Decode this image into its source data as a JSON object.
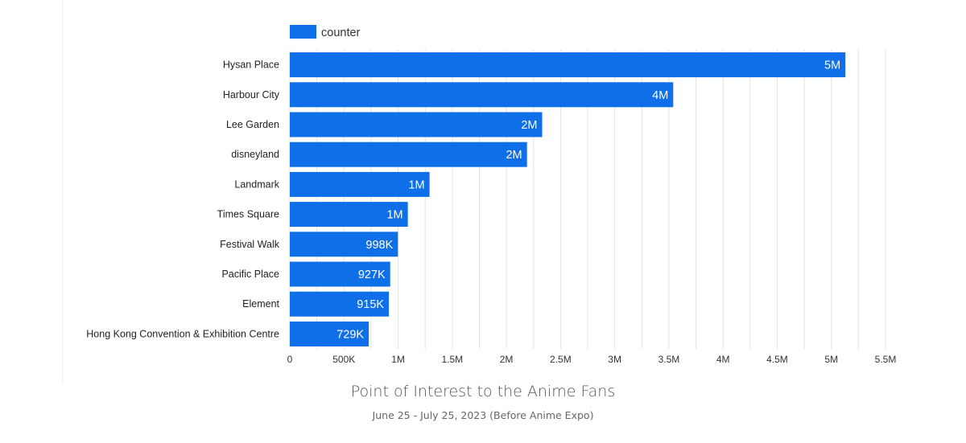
{
  "chart_data": {
    "type": "bar",
    "orientation": "horizontal",
    "categories": [
      "Hysan Place",
      "Harbour City",
      "Lee Garden",
      "disneyland",
      "Landmark",
      "Times Square",
      "Festival Walk",
      "Pacific Place",
      "Element",
      "Hong Kong Convention & Exhibition Centre"
    ],
    "series": [
      {
        "name": "counter",
        "values": [
          5130000,
          3540000,
          2330000,
          2190000,
          1290000,
          1090000,
          998000,
          927000,
          915000,
          729000
        ],
        "data_labels": [
          "5M",
          "4M",
          "2M",
          "2M",
          "1M",
          "1M",
          "998K",
          "927K",
          "915K",
          "729K"
        ]
      }
    ],
    "xlim": [
      0,
      5500000
    ],
    "x_ticks": [
      0,
      500000,
      1000000,
      1500000,
      2000000,
      2500000,
      3000000,
      3500000,
      4000000,
      4500000,
      5000000,
      5500000
    ],
    "x_tick_labels": [
      "0",
      "500K",
      "1M",
      "1.5M",
      "2M",
      "2.5M",
      "3M",
      "3.5M",
      "4M",
      "4.5M",
      "5M",
      "5.5M"
    ],
    "grid": true,
    "legend": "top-left",
    "title": "Point of Interest to the Anime Fans",
    "subtitle": "June 25 - July 25, 2023 (Before Anime Expo)",
    "colors": {
      "bar": "#0F6FE8",
      "grid": "#e3e3e3"
    }
  }
}
